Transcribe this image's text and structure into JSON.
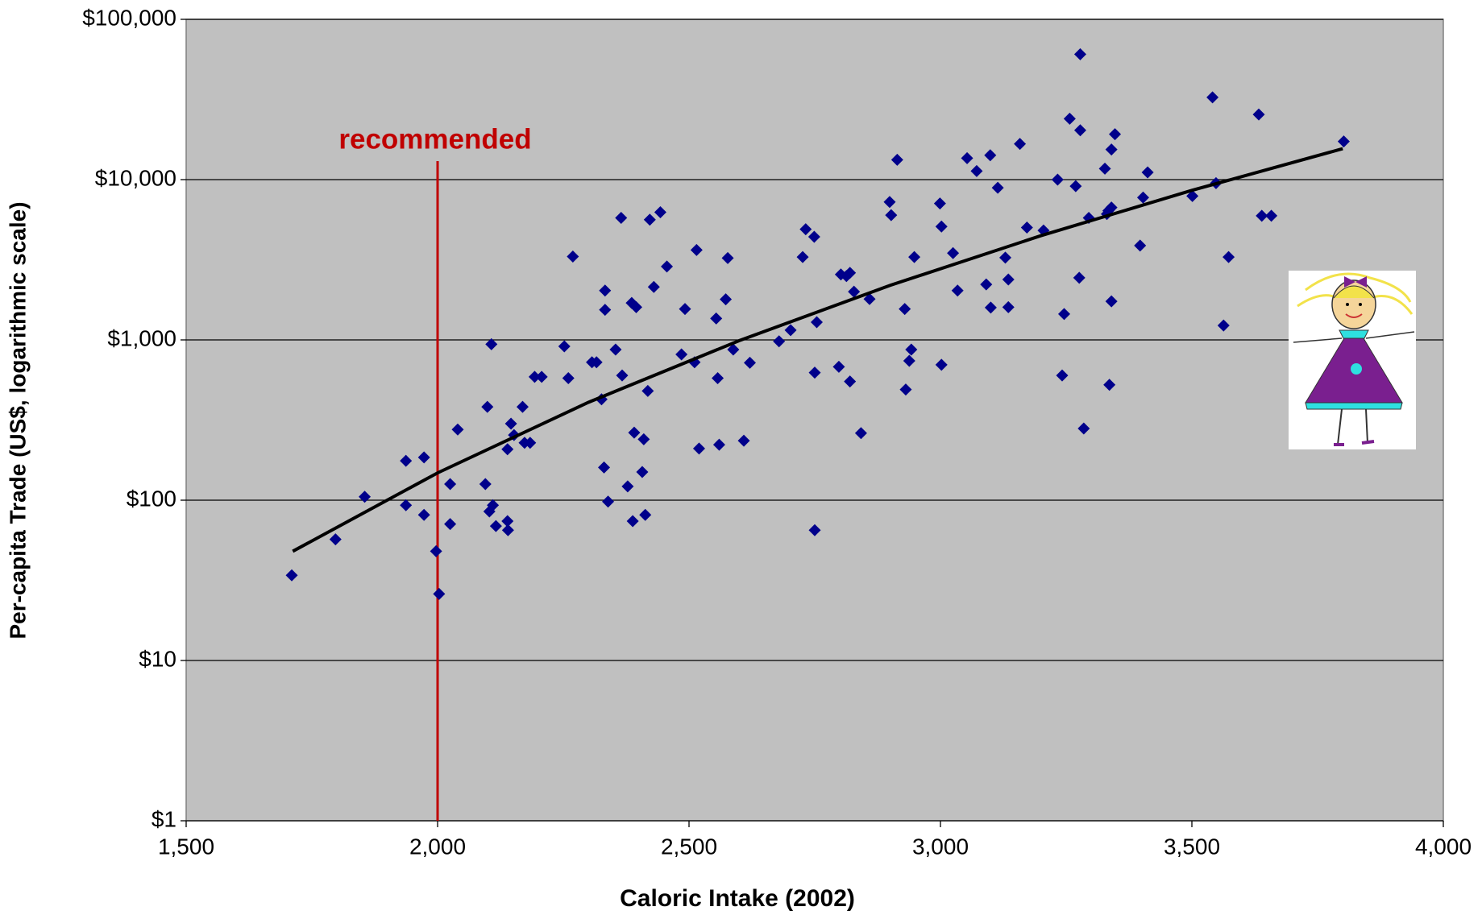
{
  "chart_data": {
    "type": "scatter",
    "xlabel": "Caloric Intake (2002)",
    "ylabel": "Per-capita Trade (US$, logarithmic scale)",
    "annotation": "recommended",
    "reference_x": 2000,
    "log_y": true,
    "grid": true,
    "xlim": [
      1500,
      4000
    ],
    "ylim": [
      1,
      100000
    ],
    "xticks": [
      {
        "value": 1500,
        "label": "1,500"
      },
      {
        "value": 2000,
        "label": "2,000"
      },
      {
        "value": 2500,
        "label": "2,500"
      },
      {
        "value": 3000,
        "label": "3,000"
      },
      {
        "value": 3500,
        "label": "3,500"
      },
      {
        "value": 4000,
        "label": "4,000"
      }
    ],
    "yticks": [
      {
        "value": 1,
        "label": "$1"
      },
      {
        "value": 10,
        "label": "$10"
      },
      {
        "value": 100,
        "label": "$100"
      },
      {
        "value": 1000,
        "label": "$1,000"
      },
      {
        "value": 10000,
        "label": "$10,000"
      },
      {
        "value": 100000,
        "label": "$100,000"
      }
    ],
    "series": [
      {
        "color": "#00008b",
        "x": [
          1710,
          1797,
          1855,
          1937,
          1937,
          1973,
          1973,
          1997,
          2003,
          2025,
          2025,
          2040,
          2095,
          2099,
          2103,
          2107,
          2110,
          2116,
          2139,
          2140,
          2139,
          2146,
          2152,
          2169,
          2173,
          2184,
          2193,
          2207,
          2252,
          2260,
          2269,
          2307,
          2316,
          2326,
          2331,
          2333,
          2333,
          2339,
          2354,
          2365,
          2367,
          2378,
          2386,
          2388,
          2391,
          2395,
          2407,
          2410,
          2413,
          2418,
          2422,
          2430,
          2443,
          2456,
          2485,
          2492,
          2511,
          2515,
          2520,
          2554,
          2557,
          2560,
          2573,
          2577,
          2588,
          2609,
          2621,
          2679,
          2702,
          2726,
          2732,
          2749,
          2750,
          2754,
          2750,
          2798,
          2802,
          2813,
          2820,
          2820,
          2828,
          2842,
          2859,
          2899,
          2902,
          2914,
          2929,
          2931,
          2938,
          2942,
          2948,
          2999,
          3002,
          3002,
          3025,
          3034,
          3053,
          3072,
          3091,
          3099,
          3100,
          3114,
          3129,
          3135,
          3135,
          3158,
          3172,
          3205,
          3233,
          3242,
          3246,
          3257,
          3269,
          3276,
          3278,
          3278,
          3285,
          3295,
          3327,
          3331,
          3334,
          3336,
          3340,
          3340,
          3347,
          3340,
          3397,
          3403,
          3412,
          3501,
          3541,
          3548,
          3563,
          3573,
          3633,
          3639,
          3658,
          3802
        ],
        "values": [
          34,
          57,
          105,
          176,
          93,
          185,
          81,
          48,
          26,
          126,
          71,
          276,
          126,
          382,
          85,
          940,
          93,
          69,
          74,
          65,
          208,
          300,
          255,
          382,
          228,
          228,
          588,
          588,
          912,
          577,
          3310,
          725,
          725,
          426,
          160,
          2030,
          1540,
          98,
          870,
          5770,
          600,
          122,
          1700,
          74,
          264,
          1600,
          150,
          240,
          81,
          480,
          5620,
          2140,
          6260,
          2870,
          812,
          1560,
          725,
          3640,
          210,
          1360,
          577,
          222,
          1790,
          3240,
          870,
          235,
          720,
          980,
          1150,
          3290,
          4900,
          4400,
          625,
          1290,
          65,
          680,
          2560,
          2500,
          2620,
          550,
          2000,
          262,
          1800,
          7250,
          6000,
          13300,
          1560,
          490,
          740,
          870,
          3290,
          7100,
          5100,
          700,
          3480,
          2030,
          13600,
          11300,
          2220,
          14200,
          1590,
          8900,
          3260,
          2380,
          1600,
          16700,
          5020,
          4820,
          10000,
          600,
          1450,
          24000,
          9100,
          2440,
          60500,
          20300,
          280,
          5770,
          11700,
          6100,
          6400,
          525,
          1740,
          15400,
          19200,
          6700,
          3880,
          7730,
          11100,
          7900,
          32600,
          9500,
          1230,
          3290,
          25500,
          5950,
          5950,
          17300
        ]
      }
    ],
    "trendline": {
      "color": "#000000",
      "x": [
        1712,
        2000,
        2300,
        2600,
        2900,
        3200,
        3500,
        3800
      ],
      "values": [
        48,
        148,
        408,
        990,
        2190,
        4470,
        8570,
        15600
      ]
    }
  }
}
